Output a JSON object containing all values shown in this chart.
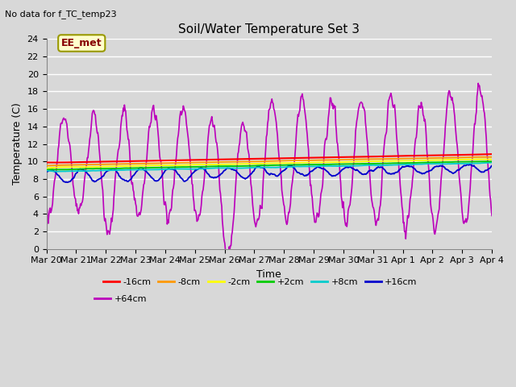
{
  "title": "Soil/Water Temperature Set 3",
  "subtitle": "No data for f_TC_temp23",
  "ylabel": "Temperature (C)",
  "xlabel": "Time",
  "annotation": "EE_met",
  "bg_color": "#d8d8d8",
  "ylim": [
    0,
    24
  ],
  "yticks": [
    0,
    2,
    4,
    6,
    8,
    10,
    12,
    14,
    16,
    18,
    20,
    22,
    24
  ],
  "x_labels": [
    "Mar 20",
    "Mar 21",
    "Mar 22",
    "Mar 23",
    "Mar 24",
    "Mar 25",
    "Mar 26",
    "Mar 27",
    "Mar 28",
    "Mar 29",
    "Mar 30",
    "Mar 31",
    "Apr 1",
    "Apr 2",
    "Apr 3",
    "Apr 4"
  ],
  "colors": {
    "-16cm": "#ff0000",
    "-8cm": "#ff9900",
    "-2cm": "#ffff00",
    "+2cm": "#00cc00",
    "+8cm": "#00cccc",
    "+16cm": "#0000cc",
    "+64cm": "#bb00bb"
  },
  "legend_labels": [
    "-16cm",
    "-8cm",
    "-2cm",
    "+2cm",
    "+8cm",
    "+16cm",
    "+64cm"
  ]
}
